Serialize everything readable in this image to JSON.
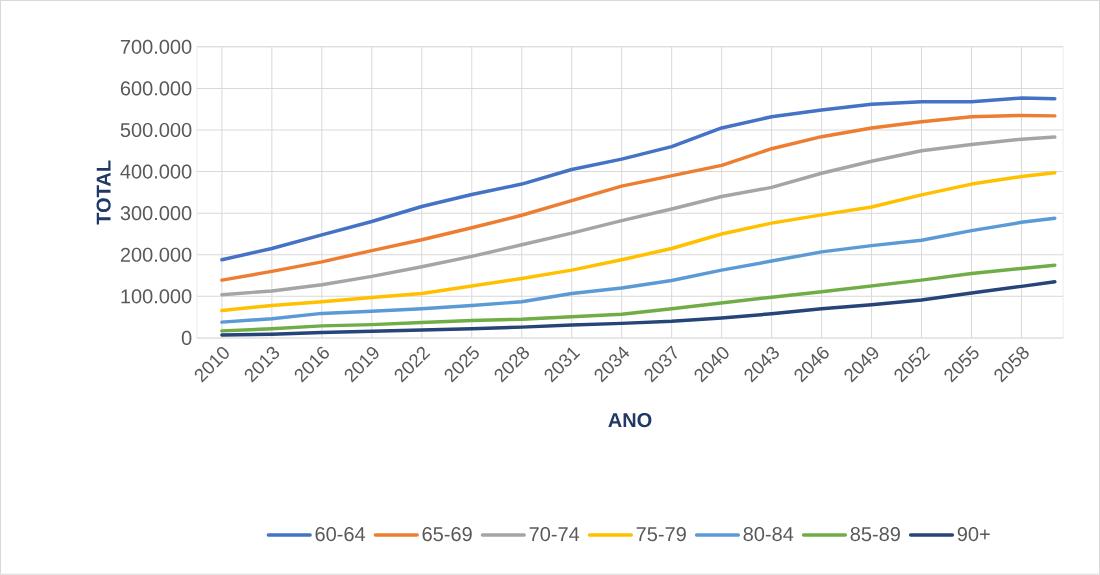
{
  "chart_data": {
    "type": "line",
    "xlabel": "ANO",
    "ylabel": "TOTAL",
    "x": [
      2010,
      2013,
      2016,
      2019,
      2022,
      2025,
      2028,
      2031,
      2034,
      2037,
      2040,
      2043,
      2046,
      2049,
      2052,
      2055,
      2058,
      2060
    ],
    "xlim": [
      2008.5,
      2060.5
    ],
    "xticks": [
      2010,
      2013,
      2016,
      2019,
      2022,
      2025,
      2028,
      2031,
      2034,
      2037,
      2040,
      2043,
      2046,
      2049,
      2052,
      2055,
      2058
    ],
    "ylim": [
      0,
      700000
    ],
    "yticks": [
      {
        "value": 0,
        "label": "0"
      },
      {
        "value": 100000,
        "label": "100.000"
      },
      {
        "value": 200000,
        "label": "200.000"
      },
      {
        "value": 300000,
        "label": "300.000"
      },
      {
        "value": 400000,
        "label": "400.000"
      },
      {
        "value": 500000,
        "label": "500.000"
      },
      {
        "value": 600000,
        "label": "600.000"
      },
      {
        "value": 700000,
        "label": "700.000"
      }
    ],
    "grid": true,
    "legend": "bottom",
    "series": [
      {
        "name": "60-64",
        "color": "#4472c4",
        "values": [
          188000,
          215000,
          248000,
          280000,
          316000,
          345000,
          370000,
          405000,
          430000,
          460000,
          505000,
          532000,
          548000,
          562000,
          568000,
          568000,
          577000,
          575000
        ]
      },
      {
        "name": "65-69",
        "color": "#ed7d31",
        "values": [
          139000,
          160000,
          183000,
          210000,
          236000,
          265000,
          295000,
          330000,
          365000,
          390000,
          415000,
          455000,
          484000,
          505000,
          520000,
          532000,
          535000,
          534000
        ]
      },
      {
        "name": "70-74",
        "color": "#a5a5a5",
        "values": [
          104000,
          113000,
          128000,
          148000,
          171000,
          196000,
          224000,
          252000,
          282000,
          310000,
          340000,
          362000,
          396000,
          425000,
          450000,
          465000,
          478000,
          483000
        ]
      },
      {
        "name": "75-79",
        "color": "#ffc000",
        "values": [
          66000,
          78000,
          87000,
          97000,
          107000,
          125000,
          143000,
          163000,
          188000,
          215000,
          250000,
          276000,
          296000,
          315000,
          344000,
          370000,
          388000,
          397000
        ]
      },
      {
        "name": "80-84",
        "color": "#5b9bd5",
        "values": [
          38000,
          46000,
          59000,
          64000,
          70000,
          78000,
          87000,
          107000,
          120000,
          138000,
          163000,
          185000,
          207000,
          222000,
          235000,
          258000,
          278000,
          288000
        ]
      },
      {
        "name": "85-89",
        "color": "#70ad47",
        "values": [
          17000,
          22000,
          29000,
          32000,
          37000,
          42000,
          45000,
          51000,
          57000,
          70000,
          84000,
          98000,
          111000,
          125000,
          139000,
          155000,
          167000,
          175000
        ]
      },
      {
        "name": "90+",
        "color": "#264478",
        "values": [
          7000,
          9000,
          13000,
          16000,
          19000,
          22000,
          26000,
          31000,
          35000,
          40000,
          48000,
          58000,
          70000,
          80000,
          91000,
          108000,
          124000,
          135000
        ]
      }
    ]
  }
}
